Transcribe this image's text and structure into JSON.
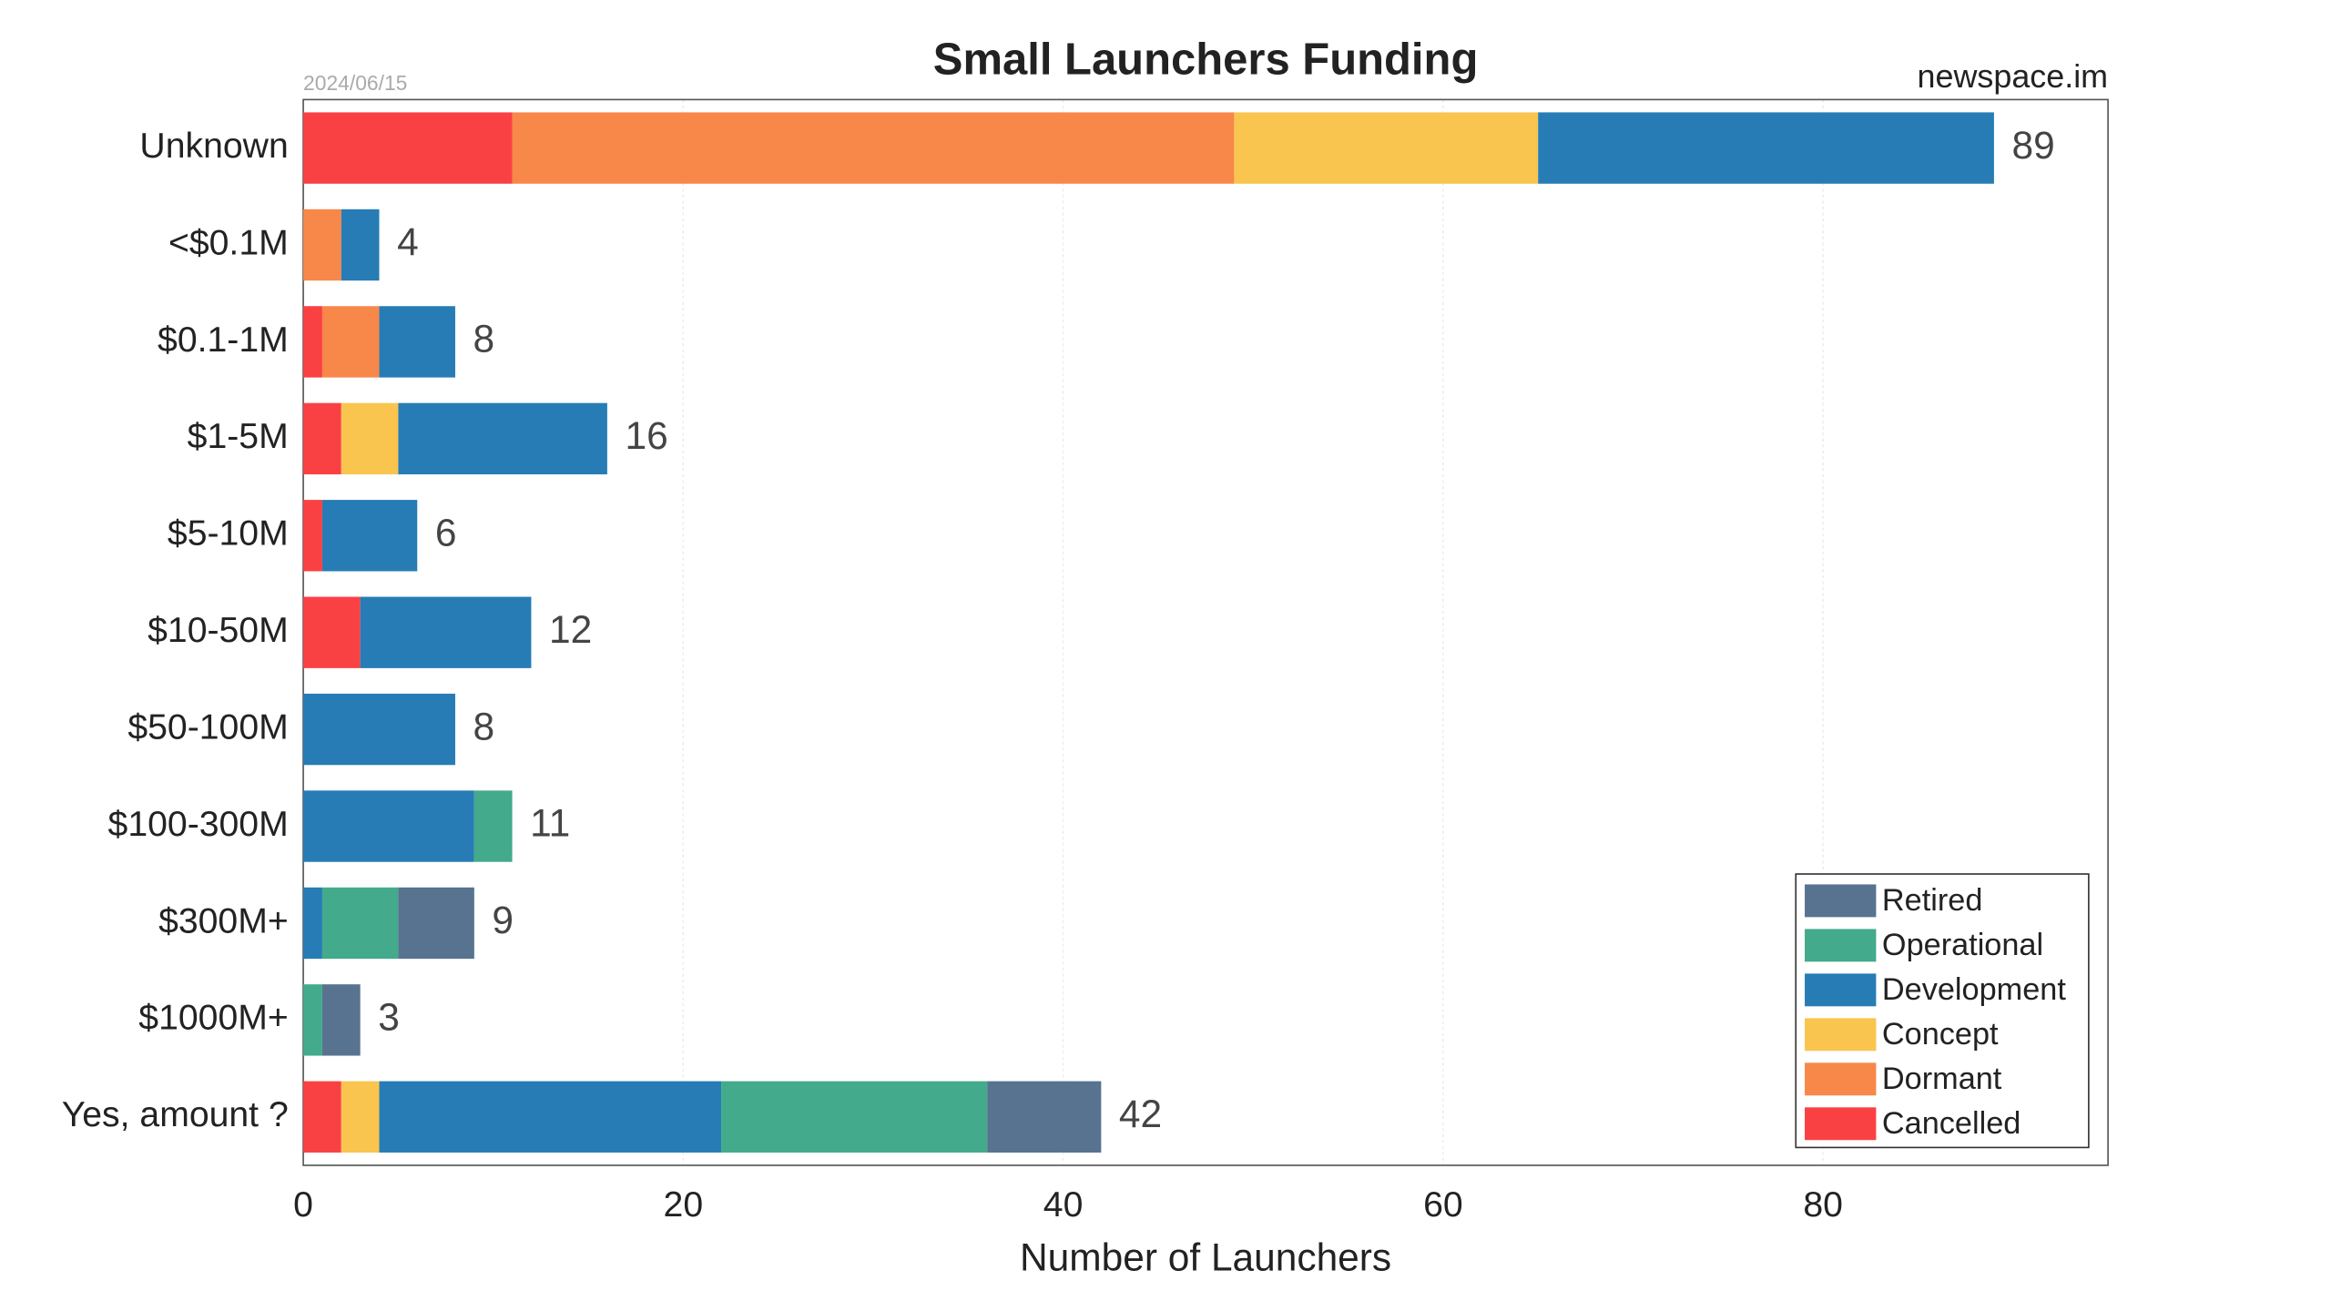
{
  "chart_data": {
    "type": "stacked-barh",
    "title": "Small Launchers Funding",
    "date": "2024/06/15",
    "source": "newspace.im",
    "xlabel": "Number of Launchers",
    "categories": [
      "Unknown",
      "<$0.1M",
      "$0.1-1M",
      "$1-5M",
      "$5-10M",
      "$10-50M",
      "$50-100M",
      "$100-300M",
      "$300M+",
      "$1000M+",
      "Yes, amount ?"
    ],
    "series": [
      {
        "name": "Retired",
        "color": "#57738f",
        "values": [
          0,
          0,
          0,
          0,
          0,
          0,
          0,
          0,
          4,
          2,
          6
        ]
      },
      {
        "name": "Operational",
        "color": "#43aa8b",
        "values": [
          0,
          0,
          0,
          0,
          0,
          0,
          0,
          2,
          4,
          1,
          14
        ]
      },
      {
        "name": "Development",
        "color": "#277cb5",
        "values": [
          24,
          2,
          4,
          11,
          5,
          9,
          8,
          9,
          1,
          0,
          18
        ]
      },
      {
        "name": "Concept",
        "color": "#f9c54f",
        "values": [
          16,
          0,
          0,
          3,
          0,
          0,
          0,
          0,
          0,
          0,
          2
        ]
      },
      {
        "name": "Dormant",
        "color": "#f8874a",
        "values": [
          38,
          2,
          3,
          0,
          0,
          0,
          0,
          0,
          0,
          0,
          0
        ]
      },
      {
        "name": "Cancelled",
        "color": "#f94144",
        "values": [
          11,
          0,
          1,
          2,
          1,
          3,
          0,
          0,
          0,
          0,
          2
        ]
      }
    ],
    "totals": [
      89,
      4,
      8,
      16,
      6,
      12,
      8,
      11,
      9,
      3,
      42
    ],
    "xlim": [
      0,
      95
    ],
    "xticks": [
      0,
      20,
      40,
      60,
      80
    ],
    "grid": true,
    "legend": "lower right"
  }
}
